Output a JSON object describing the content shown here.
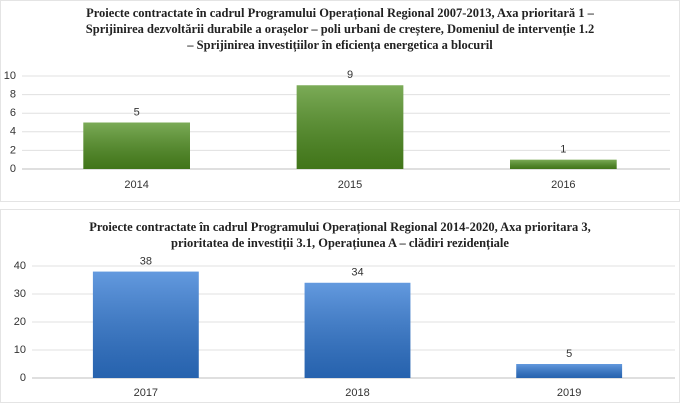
{
  "chart_data": [
    {
      "type": "bar",
      "title": [
        "Proiecte contractate în cadrul Programului Operațional Regional 2007-2013, Axa prioritară 1 –",
        "Sprijinirea dezvoltării durabile a orașelor – poli urbani de creștere, Domeniul de intervenție 1.2",
        "– Sprijinirea investițiilor în eficiența energetica a blocuril"
      ],
      "categories": [
        "2014",
        "2015",
        "2016"
      ],
      "values": [
        5,
        9,
        1
      ],
      "color": "#4f8f1f",
      "ylim": [
        0,
        10
      ],
      "yticks": [
        0,
        2,
        4,
        6,
        8,
        10
      ],
      "grid": true
    },
    {
      "type": "bar",
      "title": [
        "Proiecte contractate în cadrul Programului Operațional Regional 2014-2020, Axa prioritara 3,",
        "prioritatea de investiții 3.1, Operațiunea A – clădiri rezidențiale"
      ],
      "categories": [
        "2017",
        "2018",
        "2019"
      ],
      "values": [
        38,
        34,
        5
      ],
      "color": "#2f78d4",
      "ylim": [
        0,
        40
      ],
      "yticks": [
        0,
        10,
        20,
        30,
        40
      ],
      "grid": true
    }
  ]
}
